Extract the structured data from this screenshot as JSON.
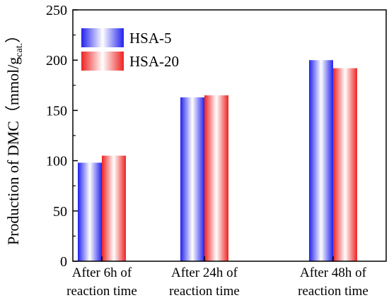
{
  "chart_data": {
    "type": "bar",
    "categories": [
      [
        "After 6h of",
        "reaction time"
      ],
      [
        "After 24h of",
        "reaction time"
      ],
      [
        "After 48h of",
        "reaction time"
      ]
    ],
    "series": [
      {
        "name": "HSA-5",
        "values": [
          98,
          163,
          200
        ],
        "color": "#2222ee"
      },
      {
        "name": "HSA-20",
        "values": [
          105,
          165,
          192
        ],
        "color": "#ee2222"
      }
    ],
    "ylabel": {
      "prefix": "Production of DMC（mmol/g",
      "subscript": "cat.",
      "suffix": "）"
    },
    "ylim": [
      0,
      250
    ],
    "yticks": [
      "0",
      "50",
      "100",
      "150",
      "200",
      "250"
    ],
    "legend": "top-left",
    "grid": false
  }
}
